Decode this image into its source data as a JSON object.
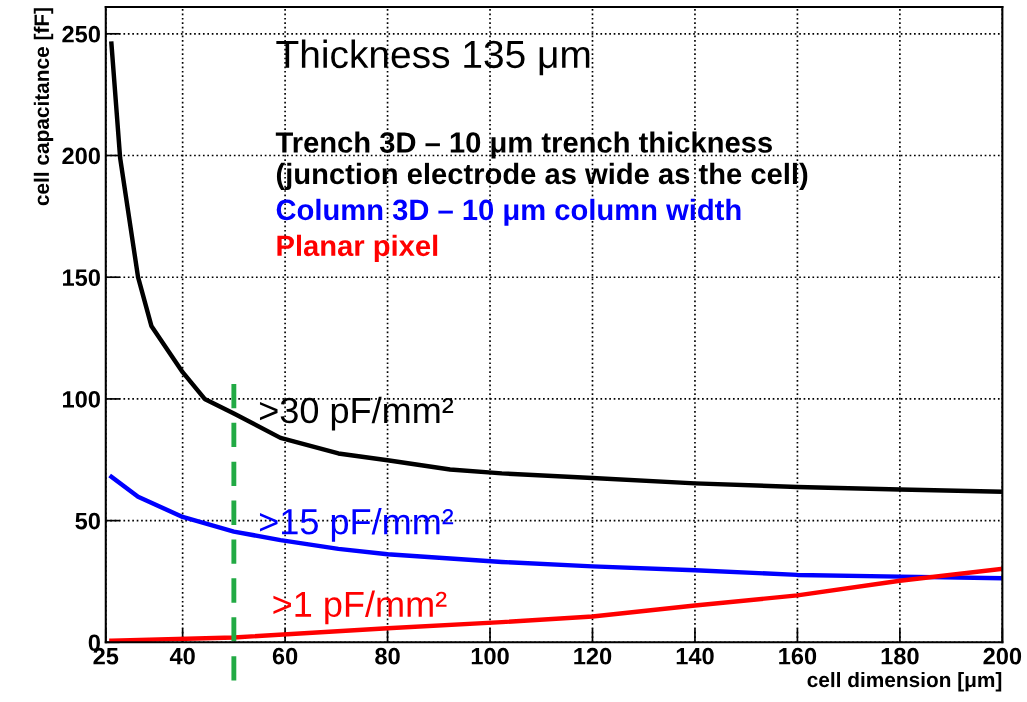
{
  "chart_data": {
    "type": "line",
    "xlabel": "cell dimension [μm]",
    "ylabel": "cell capacitance [fF]",
    "legend_title": "Thickness 135 μm",
    "xlim": [
      25,
      200
    ],
    "ylim": [
      0,
      261
    ],
    "xticks": [
      25,
      40,
      60,
      80,
      100,
      120,
      140,
      160,
      180,
      200
    ],
    "yticks": [
      0,
      50,
      100,
      150,
      200,
      250
    ],
    "grid": true,
    "legend": "top left",
    "marker": "none",
    "line_style": "solid",
    "series": [
      {
        "name": "Trench 3D – 10 μm trench thickness\n(junction electrode as wide as the cell)",
        "color": "#000000",
        "x": [
          26.1,
          27.8,
          31.3,
          33.9,
          40,
          44.3,
          50,
          59.1,
          70.4,
          80,
          92.2,
          102.3,
          120,
          140,
          160,
          180,
          200
        ],
        "values": [
          246,
          199,
          150,
          130,
          111,
          100,
          94,
          84,
          77.6,
          74.8,
          71,
          69.4,
          67.5,
          65.3,
          63.8,
          62.8,
          61.9
        ]
      },
      {
        "name": "Column 3D – 10 μm column width",
        "color": "#0000ff",
        "x": [
          26.1,
          31.3,
          40,
          50,
          59.1,
          70.4,
          80,
          102.3,
          120,
          140,
          160,
          180,
          200
        ],
        "values": [
          68,
          59.8,
          51.5,
          45.5,
          42,
          38.4,
          36.2,
          33,
          31.2,
          29.6,
          27.7,
          27,
          26.3
        ]
      },
      {
        "name": "Planar pixel",
        "color": "#ff0000",
        "x": [
          26.1,
          50,
          80,
          102.3,
          120,
          140,
          160,
          180,
          200
        ],
        "values": [
          0.7,
          2.0,
          5.8,
          8.3,
          10.6,
          15.1,
          19.3,
          25.3,
          30.2
        ]
      }
    ],
    "annotations": [
      ">30 pF/mm²",
      ">15 pF/mm²",
      ">1 pF/mm²"
    ],
    "ref_lines": [
      {
        "axis": "x",
        "value": 50,
        "color": "#22aa44",
        "line_style": "dashed"
      }
    ]
  }
}
